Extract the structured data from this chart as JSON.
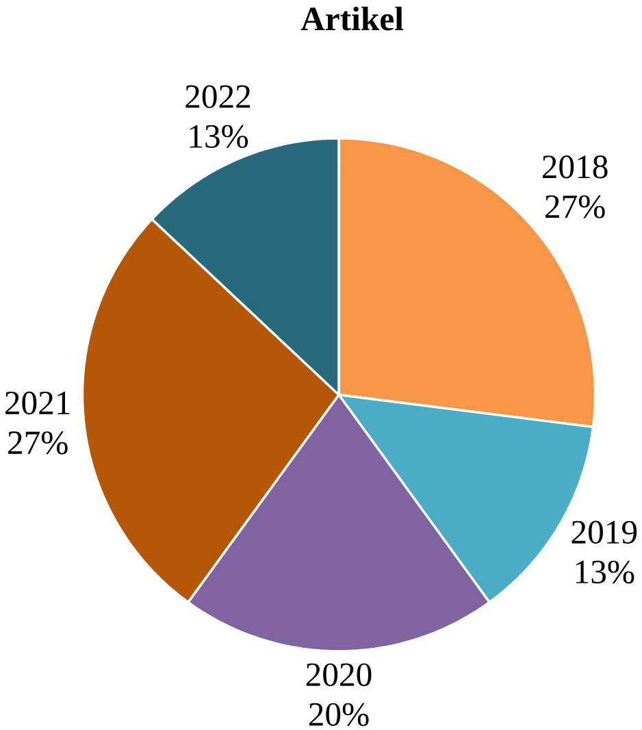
{
  "chart_data": {
    "type": "pie",
    "title": "Artikel",
    "categories": [
      "2018",
      "2019",
      "2020",
      "2021",
      "2022"
    ],
    "values": [
      27,
      13,
      20,
      27,
      13
    ],
    "value_labels": [
      "27%",
      "13%",
      "20%",
      "27%",
      "13%"
    ],
    "colors": [
      "#f79646",
      "#4bacc6",
      "#8064a2",
      "#b65708",
      "#276a7c"
    ]
  }
}
